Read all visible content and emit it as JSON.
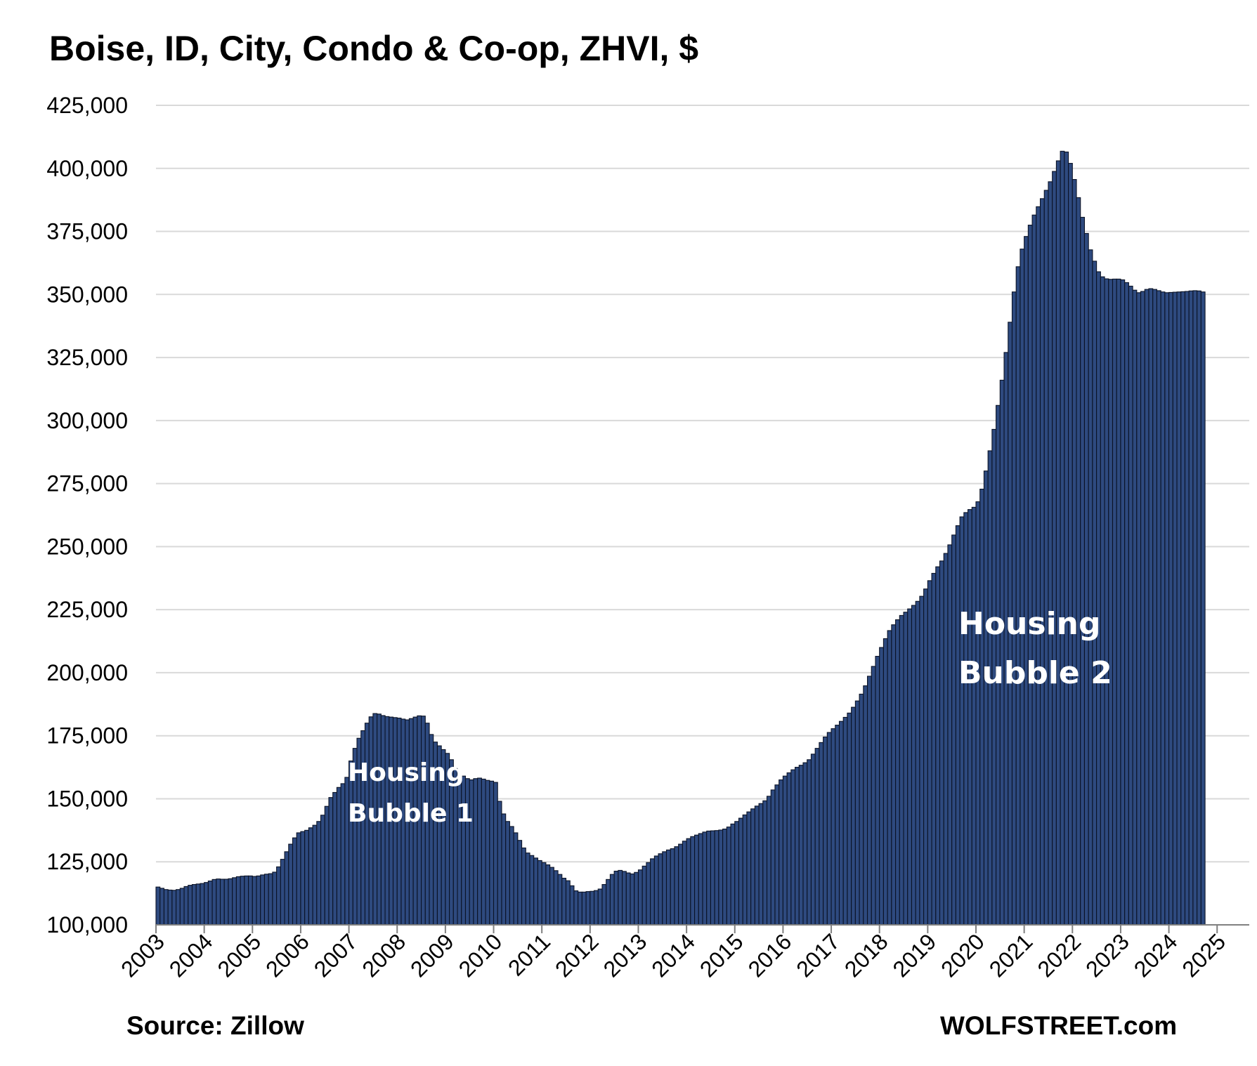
{
  "chart_data": {
    "type": "bar",
    "title": "Boise, ID, City, Condo & Co-op, ZHVI, $",
    "xlabel": "",
    "ylabel": "",
    "ylim": [
      100000,
      425000
    ],
    "y_ticks": [
      "100,000",
      "125,000",
      "150,000",
      "175,000",
      "200,000",
      "225,000",
      "250,000",
      "275,000",
      "300,000",
      "325,000",
      "350,000",
      "375,000",
      "400,000",
      "425,000"
    ],
    "x_ticks": [
      "2003",
      "2004",
      "2005",
      "2006",
      "2007",
      "2008",
      "2009",
      "2010",
      "2011",
      "2012",
      "2013",
      "2014",
      "2015",
      "2016",
      "2017",
      "2018",
      "2019",
      "2020",
      "2021",
      "2022",
      "2023",
      "2024",
      "2025"
    ],
    "grid": true,
    "legend": "none",
    "series": [
      {
        "frequency": "monthly",
        "start": "2003-01",
        "values": [
          115000,
          114500,
          114000,
          113800,
          113700,
          114000,
          114500,
          115200,
          115700,
          116000,
          116200,
          116400,
          116800,
          117400,
          118000,
          118200,
          118100,
          118100,
          118300,
          118700,
          119100,
          119300,
          119400,
          119400,
          119200,
          119400,
          119800,
          120100,
          120300,
          120900,
          123000,
          126000,
          129000,
          132000,
          134500,
          136500,
          137000,
          137500,
          138500,
          139500,
          141000,
          143500,
          147000,
          150500,
          152500,
          154500,
          156000,
          158500,
          165000,
          170000,
          174000,
          177000,
          180000,
          182500,
          183800,
          183600,
          183000,
          182600,
          182400,
          182200,
          182000,
          181600,
          181300,
          181800,
          182400,
          182900,
          182800,
          180000,
          175500,
          172500,
          171000,
          169500,
          168000,
          165500,
          162000,
          160000,
          159000,
          158000,
          157500,
          158000,
          158200,
          157800,
          157300,
          157000,
          156500,
          149000,
          144000,
          141000,
          139000,
          136500,
          133500,
          130500,
          128500,
          127500,
          126500,
          125500,
          124700,
          123800,
          122800,
          121500,
          120000,
          118500,
          117500,
          115500,
          113500,
          113000,
          113000,
          113200,
          113300,
          113600,
          114200,
          116000,
          118000,
          120000,
          121300,
          121600,
          121200,
          120600,
          120200,
          120800,
          121800,
          123300,
          124700,
          126200,
          127300,
          128200,
          129000,
          129700,
          130200,
          131000,
          132000,
          133200,
          134200,
          135000,
          135600,
          136200,
          136800,
          137200,
          137300,
          137400,
          137600,
          138000,
          138800,
          140000,
          141000,
          142300,
          143600,
          144800,
          146000,
          147100,
          148100,
          149200,
          151000,
          153500,
          155500,
          157500,
          159000,
          160300,
          161500,
          162500,
          163300,
          164300,
          165500,
          167700,
          170000,
          172300,
          174500,
          176300,
          177800,
          179200,
          180700,
          182300,
          184000,
          186300,
          188800,
          191500,
          194800,
          198600,
          202500,
          206500,
          210000,
          213500,
          216700,
          219000,
          221000,
          222700,
          224000,
          225300,
          226700,
          228300,
          230300,
          233200,
          236500,
          239400,
          242000,
          244300,
          247300,
          250700,
          254600,
          258300,
          261800,
          263500,
          264700,
          265600,
          267800,
          272800,
          280000,
          288000,
          296500,
          306000,
          316000,
          327000,
          339000,
          351000,
          361000,
          368000,
          373000,
          377500,
          381500,
          384800,
          388000,
          391300,
          394700,
          398800,
          403000,
          406800,
          406500,
          402000,
          395600,
          388400,
          380600,
          374200,
          367700,
          363200,
          359000,
          357000,
          356200,
          356000,
          356100,
          356100,
          355800,
          354700,
          353300,
          351700,
          350700,
          351200,
          352000,
          352300,
          352000,
          351500,
          351000,
          350700,
          350800,
          350900,
          351000,
          351100,
          351200,
          351400,
          351500,
          351400,
          351000
        ]
      }
    ],
    "annotations": [
      {
        "text": [
          "Housing",
          "Bubble 1"
        ]
      },
      {
        "text": [
          "Housing",
          "Bubble 2"
        ]
      }
    ]
  },
  "footer": {
    "source": "Source: Zillow",
    "brand": "WOLFSTREET.com"
  },
  "colors": {
    "bar_fill": "#2E4A7F",
    "bar_edge": "#0B1326",
    "grid": "#D9D9D9"
  }
}
